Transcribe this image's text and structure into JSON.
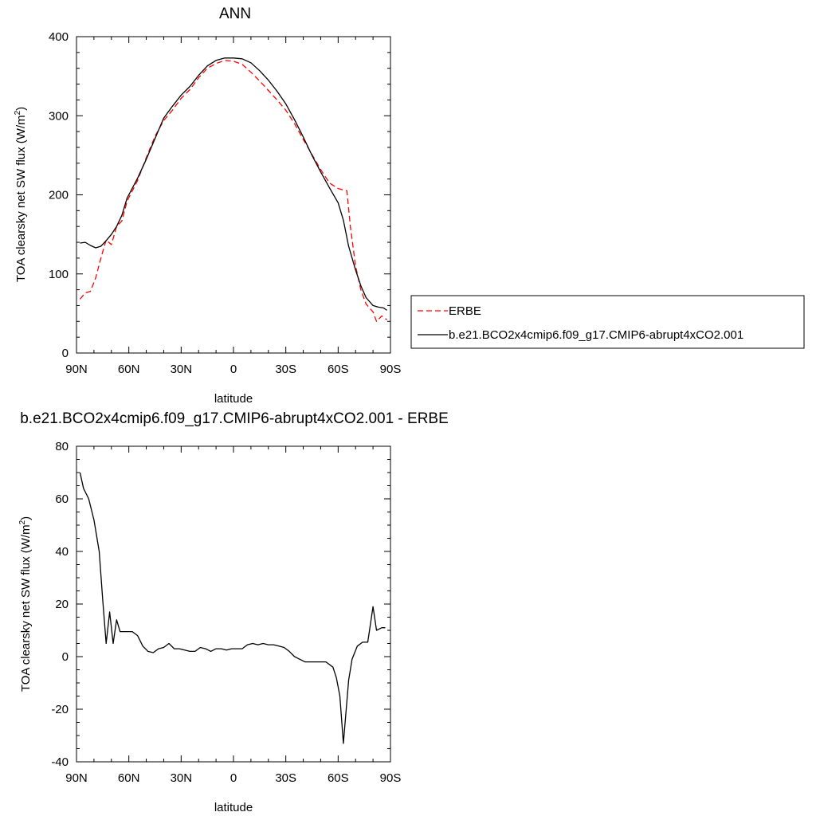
{
  "chart_data": [
    {
      "type": "line",
      "title": "ANN",
      "xlabel": "latitude",
      "ylabel": "TOA clearsky net SW flux (W/m",
      "ylabel_sup": "2",
      "ylabel_close": ")",
      "xlim": [
        90,
        -90
      ],
      "ylim": [
        0,
        400
      ],
      "xticks": [
        {
          "value": 90,
          "label": "90N"
        },
        {
          "value": 60,
          "label": "60N"
        },
        {
          "value": 30,
          "label": "30N"
        },
        {
          "value": 0,
          "label": "0"
        },
        {
          "value": -30,
          "label": "30S"
        },
        {
          "value": -60,
          "label": "60S"
        },
        {
          "value": -90,
          "label": "90S"
        }
      ],
      "yticks": [
        0,
        100,
        200,
        300,
        400
      ],
      "legend_placement": "right",
      "series": [
        {
          "name": "ERBE",
          "color": "#ff0000",
          "dash": "dashed",
          "x": [
            88,
            85,
            82,
            79,
            76,
            73,
            70,
            67,
            64,
            61,
            55,
            50,
            45,
            40,
            35,
            30,
            25,
            20,
            15,
            10,
            5,
            0,
            -5,
            -10,
            -15,
            -20,
            -25,
            -30,
            -35,
            -40,
            -45,
            -50,
            -55,
            -60,
            -65,
            -67,
            -70,
            -73,
            -76,
            -80,
            -82,
            -85,
            -88
          ],
          "y": [
            68,
            76,
            78,
            95,
            120,
            143,
            137,
            160,
            167,
            192,
            218,
            247,
            274,
            294,
            307,
            322,
            333,
            348,
            360,
            366,
            370,
            369,
            365,
            355,
            344,
            332,
            320,
            307,
            290,
            270,
            251,
            232,
            215,
            208,
            205,
            160,
            110,
            80,
            62,
            52,
            40,
            47,
            42
          ]
        },
        {
          "name": "b.e21.BCO2x4cmip6.f09_g17.CMIP6-abrupt4xCO2.001",
          "color": "#000000",
          "dash": "solid",
          "x": [
            88,
            85,
            82,
            79,
            76,
            73,
            70,
            67,
            64,
            61,
            55,
            50,
            45,
            40,
            35,
            30,
            25,
            20,
            15,
            10,
            5,
            0,
            -5,
            -10,
            -15,
            -20,
            -25,
            -30,
            -35,
            -40,
            -45,
            -50,
            -55,
            -60,
            -63,
            -66,
            -70,
            -73,
            -76,
            -80,
            -83,
            -86,
            -88
          ],
          "y": [
            139,
            140,
            136,
            133,
            135,
            142,
            150,
            160,
            174,
            196,
            221,
            245,
            271,
            297,
            312,
            326,
            337,
            351,
            363,
            370,
            373,
            373,
            372,
            367,
            357,
            345,
            331,
            315,
            295,
            273,
            250,
            229,
            209,
            190,
            168,
            135,
            105,
            85,
            70,
            60,
            58,
            57,
            54
          ]
        }
      ]
    },
    {
      "type": "line",
      "title": "b.e21.BCO2x4cmip6.f09_g17.CMIP6-abrupt4xCO2.001 - ERBE",
      "xlabel": "latitude",
      "ylabel": "TOA clearsky net SW flux (W/m",
      "ylabel_sup": "2",
      "ylabel_close": ")",
      "xlim": [
        90,
        -90
      ],
      "ylim": [
        -40,
        80
      ],
      "xticks": [
        {
          "value": 90,
          "label": "90N"
        },
        {
          "value": 60,
          "label": "60N"
        },
        {
          "value": 30,
          "label": "30N"
        },
        {
          "value": 0,
          "label": "0"
        },
        {
          "value": -30,
          "label": "30S"
        },
        {
          "value": -60,
          "label": "60S"
        },
        {
          "value": -90,
          "label": "90S"
        }
      ],
      "yticks": [
        -40,
        -20,
        0,
        20,
        40,
        60,
        80
      ],
      "series": [
        {
          "color": "#000000",
          "dash": "solid",
          "x": [
            88,
            86,
            83,
            80,
            77,
            75,
            73,
            71,
            69,
            67,
            65,
            63,
            61,
            58,
            55,
            52,
            49,
            46,
            43,
            40,
            37,
            34,
            31,
            28,
            25,
            22,
            19,
            16,
            13,
            10,
            7,
            4,
            1,
            -2,
            -5,
            -8,
            -11,
            -14,
            -17,
            -20,
            -23,
            -26,
            -29,
            -32,
            -35,
            -38,
            -41,
            -45,
            -49,
            -53,
            -57,
            -59,
            -61,
            -63,
            -66,
            -68,
            -71,
            -74,
            -77,
            -80,
            -82,
            -85,
            -87
          ],
          "y": [
            70,
            64,
            60,
            52,
            40,
            22,
            5,
            17,
            5,
            14,
            9.5,
            9.5,
            9.5,
            9.5,
            8,
            4,
            2,
            1.5,
            3,
            3.5,
            5,
            3,
            3,
            2.5,
            2,
            2,
            3.5,
            3,
            2,
            3,
            3,
            2.5,
            3,
            3,
            3,
            4.5,
            5,
            4.5,
            5,
            4.5,
            4.5,
            4,
            3.5,
            2,
            0,
            -1,
            -2,
            -2,
            -2,
            -2,
            -4,
            -8,
            -15,
            -33,
            -9,
            -1,
            4,
            5.5,
            5.5,
            19,
            10,
            11,
            11
          ]
        }
      ]
    }
  ]
}
